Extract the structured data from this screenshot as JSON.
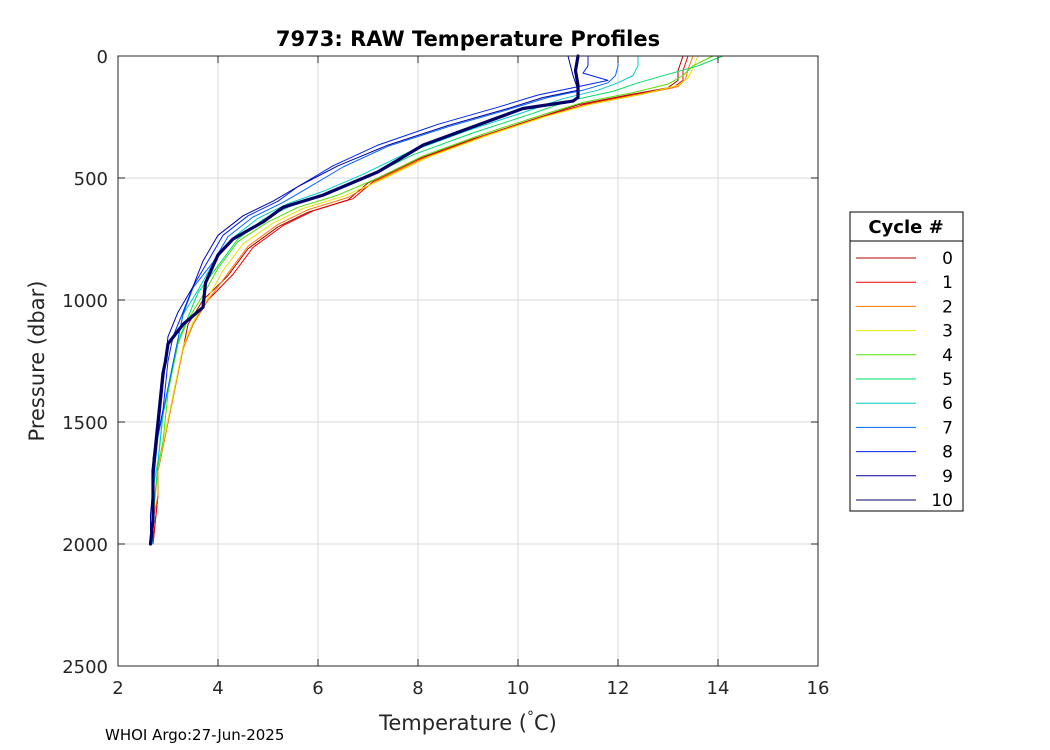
{
  "chart_data": {
    "type": "line",
    "title": "7973: RAW Temperature Profiles",
    "xlabel": "Temperature (°C)",
    "xlabel_main": "Temperature (",
    "xlabel_degree": "°",
    "xlabel_unit": "C)",
    "ylabel": "Pressure (dbar)",
    "xlim": [
      2,
      16
    ],
    "ylim": [
      0,
      2500
    ],
    "y_reversed": true,
    "grid": true,
    "xticks": [
      "2",
      "4",
      "6",
      "8",
      "10",
      "12",
      "14",
      "16"
    ],
    "yticks": [
      "0",
      "500",
      "1000",
      "1500",
      "2000",
      "2500"
    ],
    "legend": {
      "title": "Cycle #",
      "placement": "right"
    },
    "footer": "WHOI Argo:27-Jun-2025",
    "series": [
      {
        "name": "0",
        "color": "#B00000",
        "bold": false,
        "points": [
          [
            13.3,
            0
          ],
          [
            13.2,
            60
          ],
          [
            13.2,
            100
          ],
          [
            13.0,
            130
          ],
          [
            12.2,
            160
          ],
          [
            11.2,
            200
          ],
          [
            10.3,
            260
          ],
          [
            9.1,
            340
          ],
          [
            7.9,
            430
          ],
          [
            7.0,
            520
          ],
          [
            6.6,
            590
          ],
          [
            5.8,
            640
          ],
          [
            5.2,
            700
          ],
          [
            4.6,
            790
          ],
          [
            4.2,
            900
          ],
          [
            3.7,
            1000
          ],
          [
            3.4,
            1100
          ],
          [
            3.3,
            1200
          ],
          [
            3.2,
            1300
          ],
          [
            3.1,
            1400
          ],
          [
            3.0,
            1500
          ],
          [
            2.9,
            1600
          ],
          [
            2.8,
            1700
          ],
          [
            2.8,
            1800
          ],
          [
            2.75,
            1900
          ],
          [
            2.7,
            2000
          ]
        ]
      },
      {
        "name": "1",
        "color": "#EE0000",
        "bold": false,
        "points": [
          [
            13.4,
            0
          ],
          [
            13.3,
            60
          ],
          [
            13.3,
            100
          ],
          [
            13.1,
            130
          ],
          [
            12.3,
            160
          ],
          [
            11.3,
            200
          ],
          [
            10.4,
            255
          ],
          [
            9.2,
            335
          ],
          [
            8.0,
            425
          ],
          [
            7.1,
            515
          ],
          [
            6.7,
            585
          ],
          [
            5.9,
            635
          ],
          [
            5.3,
            695
          ],
          [
            4.7,
            785
          ],
          [
            4.3,
            895
          ],
          [
            3.8,
            1000
          ],
          [
            3.5,
            1100
          ],
          [
            3.3,
            1200
          ],
          [
            3.2,
            1300
          ],
          [
            3.1,
            1400
          ],
          [
            3.0,
            1500
          ],
          [
            2.9,
            1600
          ],
          [
            2.8,
            1700
          ],
          [
            2.8,
            1800
          ],
          [
            2.75,
            1900
          ],
          [
            2.7,
            2000
          ]
        ]
      },
      {
        "name": "2",
        "color": "#FF7700",
        "bold": false,
        "points": [
          [
            13.5,
            0
          ],
          [
            13.4,
            55
          ],
          [
            13.35,
            95
          ],
          [
            13.2,
            125
          ],
          [
            12.4,
            160
          ],
          [
            11.4,
            200
          ],
          [
            10.5,
            250
          ],
          [
            9.3,
            330
          ],
          [
            8.1,
            420
          ],
          [
            7.2,
            510
          ],
          [
            6.6,
            580
          ],
          [
            5.8,
            630
          ],
          [
            5.2,
            690
          ],
          [
            4.6,
            780
          ],
          [
            4.2,
            890
          ],
          [
            3.8,
            1000
          ],
          [
            3.5,
            1100
          ],
          [
            3.3,
            1200
          ],
          [
            3.2,
            1300
          ],
          [
            3.1,
            1400
          ],
          [
            3.0,
            1500
          ],
          [
            2.9,
            1600
          ],
          [
            2.8,
            1700
          ],
          [
            2.8,
            1800
          ],
          [
            2.7,
            1900
          ],
          [
            2.7,
            2000
          ]
        ]
      },
      {
        "name": "3",
        "color": "#E6E600",
        "bold": false,
        "points": [
          [
            13.6,
            0
          ],
          [
            13.5,
            50
          ],
          [
            13.4,
            90
          ],
          [
            13.2,
            120
          ],
          [
            12.5,
            155
          ],
          [
            11.5,
            195
          ],
          [
            10.6,
            245
          ],
          [
            9.4,
            325
          ],
          [
            8.2,
            415
          ],
          [
            7.3,
            505
          ],
          [
            6.5,
            575
          ],
          [
            5.7,
            625
          ],
          [
            5.1,
            685
          ],
          [
            4.5,
            770
          ],
          [
            4.1,
            880
          ],
          [
            3.8,
            990
          ],
          [
            3.5,
            1090
          ],
          [
            3.3,
            1190
          ],
          [
            3.2,
            1290
          ],
          [
            3.1,
            1390
          ],
          [
            3.0,
            1490
          ],
          [
            2.9,
            1590
          ],
          [
            2.8,
            1690
          ],
          [
            2.75,
            1800
          ],
          [
            2.7,
            1900
          ],
          [
            2.7,
            2000
          ]
        ]
      },
      {
        "name": "4",
        "color": "#55DD00",
        "bold": false,
        "points": [
          [
            13.9,
            0
          ],
          [
            13.5,
            40
          ],
          [
            13.3,
            80
          ],
          [
            13.0,
            115
          ],
          [
            12.3,
            150
          ],
          [
            11.3,
            190
          ],
          [
            10.5,
            240
          ],
          [
            9.3,
            320
          ],
          [
            8.1,
            410
          ],
          [
            7.2,
            500
          ],
          [
            6.4,
            570
          ],
          [
            5.6,
            620
          ],
          [
            5.0,
            680
          ],
          [
            4.4,
            760
          ],
          [
            4.0,
            870
          ],
          [
            3.7,
            980
          ],
          [
            3.4,
            1080
          ],
          [
            3.2,
            1180
          ],
          [
            3.1,
            1280
          ],
          [
            3.0,
            1380
          ],
          [
            2.95,
            1480
          ],
          [
            2.9,
            1580
          ],
          [
            2.8,
            1680
          ],
          [
            2.75,
            1780
          ],
          [
            2.7,
            1880
          ],
          [
            2.7,
            2000
          ]
        ]
      },
      {
        "name": "5",
        "color": "#00DD66",
        "bold": false,
        "points": [
          [
            14.1,
            0
          ],
          [
            13.6,
            40
          ],
          [
            13.0,
            75
          ],
          [
            12.4,
            110
          ],
          [
            11.9,
            145
          ],
          [
            11.0,
            185
          ],
          [
            10.3,
            235
          ],
          [
            9.1,
            315
          ],
          [
            7.9,
            405
          ],
          [
            7.0,
            495
          ],
          [
            6.2,
            560
          ],
          [
            5.5,
            610
          ],
          [
            4.9,
            670
          ],
          [
            4.4,
            750
          ],
          [
            4.0,
            860
          ],
          [
            3.6,
            970
          ],
          [
            3.4,
            1070
          ],
          [
            3.2,
            1170
          ],
          [
            3.1,
            1270
          ],
          [
            3.0,
            1370
          ],
          [
            2.9,
            1470
          ],
          [
            2.85,
            1570
          ],
          [
            2.8,
            1670
          ],
          [
            2.75,
            1780
          ],
          [
            2.7,
            1880
          ],
          [
            2.7,
            2000
          ]
        ]
      },
      {
        "name": "6",
        "color": "#00CCCC",
        "bold": false,
        "points": [
          [
            12.4,
            0
          ],
          [
            12.4,
            40
          ],
          [
            12.3,
            80
          ],
          [
            12.0,
            110
          ],
          [
            11.6,
            140
          ],
          [
            10.9,
            175
          ],
          [
            10.2,
            225
          ],
          [
            9.0,
            305
          ],
          [
            7.8,
            395
          ],
          [
            6.9,
            485
          ],
          [
            6.1,
            555
          ],
          [
            5.4,
            605
          ],
          [
            4.8,
            665
          ],
          [
            4.3,
            745
          ],
          [
            3.9,
            850
          ],
          [
            3.6,
            960
          ],
          [
            3.3,
            1060
          ],
          [
            3.2,
            1160
          ],
          [
            3.1,
            1260
          ],
          [
            3.0,
            1360
          ],
          [
            2.9,
            1460
          ],
          [
            2.85,
            1560
          ],
          [
            2.8,
            1660
          ],
          [
            2.7,
            1770
          ],
          [
            2.7,
            1880
          ],
          [
            2.7,
            2000
          ]
        ]
      },
      {
        "name": "7",
        "color": "#0066FF",
        "bold": false,
        "points": [
          [
            12.0,
            0
          ],
          [
            12.0,
            40
          ],
          [
            11.95,
            80
          ],
          [
            11.8,
            110
          ],
          [
            11.3,
            140
          ],
          [
            10.6,
            170
          ],
          [
            9.8,
            220
          ],
          [
            8.6,
            290
          ],
          [
            7.4,
            370
          ],
          [
            6.5,
            455
          ],
          [
            5.8,
            540
          ],
          [
            5.3,
            600
          ],
          [
            4.7,
            660
          ],
          [
            4.2,
            740
          ],
          [
            3.9,
            845
          ],
          [
            3.5,
            950
          ],
          [
            3.3,
            1060
          ],
          [
            3.2,
            1160
          ],
          [
            3.1,
            1260
          ],
          [
            3.0,
            1360
          ],
          [
            2.9,
            1460
          ],
          [
            2.8,
            1560
          ],
          [
            2.75,
            1660
          ],
          [
            2.7,
            1770
          ],
          [
            2.7,
            1880
          ],
          [
            2.7,
            2000
          ]
        ]
      },
      {
        "name": "8",
        "color": "#0022EE",
        "bold": false,
        "points": [
          [
            11.4,
            0
          ],
          [
            11.4,
            40
          ],
          [
            11.3,
            70
          ],
          [
            11.8,
            100
          ],
          [
            11.1,
            130
          ],
          [
            10.4,
            160
          ],
          [
            9.6,
            210
          ],
          [
            8.4,
            280
          ],
          [
            7.2,
            365
          ],
          [
            6.3,
            450
          ],
          [
            5.6,
            535
          ],
          [
            5.2,
            595
          ],
          [
            4.6,
            655
          ],
          [
            4.1,
            735
          ],
          [
            3.8,
            840
          ],
          [
            3.5,
            945
          ],
          [
            3.3,
            1050
          ],
          [
            3.1,
            1150
          ],
          [
            3.0,
            1250
          ],
          [
            2.95,
            1350
          ],
          [
            2.9,
            1450
          ],
          [
            2.8,
            1550
          ],
          [
            2.75,
            1650
          ],
          [
            2.7,
            1760
          ],
          [
            2.7,
            1880
          ],
          [
            2.65,
            2000
          ]
        ]
      },
      {
        "name": "9",
        "color": "#0000AA",
        "bold": false,
        "points": [
          [
            11.0,
            0
          ],
          [
            11.05,
            40
          ],
          [
            11.1,
            80
          ],
          [
            11.15,
            110
          ],
          [
            11.2,
            140
          ],
          [
            10.5,
            170
          ],
          [
            9.8,
            215
          ],
          [
            8.6,
            285
          ],
          [
            7.4,
            365
          ],
          [
            6.4,
            450
          ],
          [
            5.6,
            535
          ],
          [
            5.1,
            595
          ],
          [
            4.5,
            655
          ],
          [
            4.0,
            735
          ],
          [
            3.7,
            840
          ],
          [
            3.5,
            945
          ],
          [
            3.2,
            1050
          ],
          [
            3.0,
            1150
          ],
          [
            2.95,
            1250
          ],
          [
            2.9,
            1350
          ],
          [
            2.85,
            1450
          ],
          [
            2.8,
            1550
          ],
          [
            2.7,
            1650
          ],
          [
            2.7,
            1760
          ],
          [
            2.65,
            1880
          ],
          [
            2.65,
            2000
          ]
        ]
      },
      {
        "name": "10",
        "color": "#000066",
        "bold": true,
        "points": [
          [
            11.2,
            0
          ],
          [
            11.15,
            60
          ],
          [
            11.2,
            120
          ],
          [
            11.2,
            170
          ],
          [
            11.1,
            185
          ],
          [
            10.1,
            215
          ],
          [
            9.3,
            275
          ],
          [
            8.1,
            365
          ],
          [
            7.2,
            475
          ],
          [
            6.1,
            570
          ],
          [
            5.3,
            620
          ],
          [
            4.9,
            680
          ],
          [
            4.3,
            750
          ],
          [
            4.0,
            815
          ],
          [
            3.75,
            930
          ],
          [
            3.7,
            1030
          ],
          [
            3.3,
            1100
          ],
          [
            3.0,
            1180
          ],
          [
            2.95,
            1250
          ],
          [
            2.9,
            1300
          ],
          [
            2.85,
            1400
          ],
          [
            2.8,
            1500
          ],
          [
            2.75,
            1600
          ],
          [
            2.7,
            1700
          ],
          [
            2.7,
            1800
          ],
          [
            2.7,
            1900
          ],
          [
            2.65,
            2000
          ]
        ]
      }
    ]
  }
}
